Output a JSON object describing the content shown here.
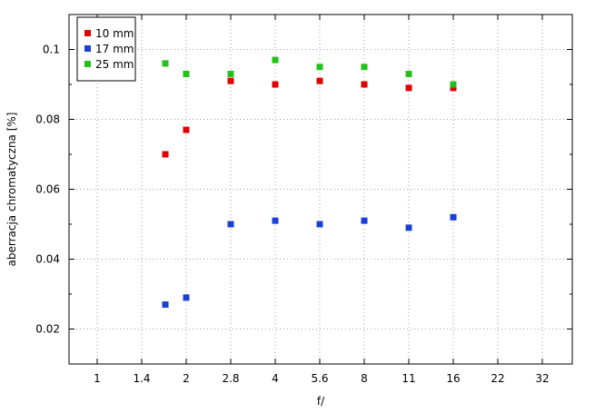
{
  "chart_data": {
    "type": "scatter",
    "title": "",
    "xlabel": "f/",
    "ylabel": "aberracja chromatyczna [%]",
    "x_categories": [
      "1",
      "1.4",
      "2",
      "2.8",
      "4",
      "5.6",
      "8",
      "11",
      "16",
      "22",
      "32"
    ],
    "y_ticks": [
      0.02,
      0.04,
      0.06,
      0.08,
      0.1
    ],
    "y_tick_labels": [
      "0.02",
      "0.04",
      "0.06",
      "0.08",
      "0.1"
    ],
    "ylim": [
      0.01,
      0.11
    ],
    "grid": true,
    "legend_position": "top-left",
    "series": [
      {
        "name": "10 mm",
        "color": "#e00000",
        "points": [
          {
            "x": "1.7",
            "y": 0.07
          },
          {
            "x": "2",
            "y": 0.077
          },
          {
            "x": "2.8",
            "y": 0.091
          },
          {
            "x": "4",
            "y": 0.09
          },
          {
            "x": "5.6",
            "y": 0.091
          },
          {
            "x": "8",
            "y": 0.09
          },
          {
            "x": "11",
            "y": 0.089
          },
          {
            "x": "16",
            "y": 0.089
          }
        ]
      },
      {
        "name": "17 mm",
        "color": "#1a3fd6",
        "points": [
          {
            "x": "1.7",
            "y": 0.027
          },
          {
            "x": "2",
            "y": 0.029
          },
          {
            "x": "2.8",
            "y": 0.05
          },
          {
            "x": "4",
            "y": 0.051
          },
          {
            "x": "5.6",
            "y": 0.05
          },
          {
            "x": "8",
            "y": 0.051
          },
          {
            "x": "11",
            "y": 0.049
          },
          {
            "x": "16",
            "y": 0.052
          }
        ]
      },
      {
        "name": "25 mm",
        "color": "#22c11a",
        "points": [
          {
            "x": "1.7",
            "y": 0.096
          },
          {
            "x": "2",
            "y": 0.093
          },
          {
            "x": "2.8",
            "y": 0.093
          },
          {
            "x": "4",
            "y": 0.097
          },
          {
            "x": "5.6",
            "y": 0.095
          },
          {
            "x": "8",
            "y": 0.095
          },
          {
            "x": "11",
            "y": 0.093
          },
          {
            "x": "16",
            "y": 0.09
          }
        ]
      }
    ]
  }
}
